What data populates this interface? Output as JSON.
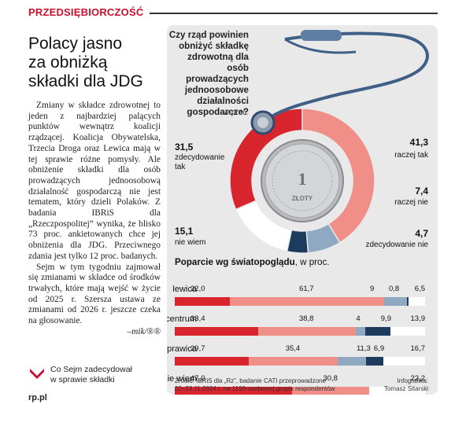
{
  "section": {
    "label": "PRZEDSIĘBIORCZOŚĆ"
  },
  "headline": [
    "Polacy jasno",
    "za obniżką",
    "składki dla JDG"
  ],
  "body": {
    "p1": "Zmiany w składce zdrowotnej to jeden z najbardziej palących punktów wewnątrz koalicji rządzącej. Koalicja Obywatelska, Trzecia Droga oraz Lewica mają w tej sprawie różne pomysły. Ale obniżenie składki dla osób prowadzących jednoosobową działalność gospodarczą nie jest tematem, który dzieli Polaków. Z badania IBRiS dla „Rzeczpospolitej” wynika, że blisko 73 proc. ankietowanych chce jej obniżenia dla JDG. Przeciwnego zdania jest tylko 12 proc. badanych.",
    "p2": "Sejm w tym tygodniu zajmował się zmianami w składce od środków trwałych, które mają wejść w życie od 2025 r. Szersza ustawa ze zmianami od 2026 r. jeszcze czeka na głosowanie.",
    "signature": "–mik/®®"
  },
  "related": {
    "line1": "Co Sejm zadecydował",
    "line2": "w sprawie składki",
    "icon": "chevron-down-icon"
  },
  "footer": {
    "site": "rp.pl"
  },
  "infographic": {
    "question": [
      "Czy rząd powinien",
      "obniżyć składkę",
      "zdrowotną dla osób",
      "prowadzących",
      "jednoosobowe",
      "działalności",
      "gospodarcze?"
    ],
    "unit": "w proc.",
    "donut_labels": {
      "zt_val": "31,5",
      "zt_l1": "zdecydowanie",
      "zt_l2": "tak",
      "rt_val": "41,3",
      "rt_l1": "raczej tak",
      "rn_val": "7,4",
      "rn_l1": "raczej nie",
      "zn_val": "4,7",
      "zn_l1": "zdecydowanie nie",
      "nw_val": "15,1",
      "nw_l1": "nie wiem"
    },
    "coin": {
      "digit": "1",
      "text": "ZŁOTY"
    },
    "subhead_bold": "Poparcie wg światopoglądu",
    "subhead_rest": ", w proc.",
    "rows": [
      {
        "label": "lewica",
        "n": [
          "22,0",
          "61,7",
          "9",
          "0,8",
          "6,5"
        ]
      },
      {
        "label": "centrum",
        "n": [
          "33,4",
          "38,8",
          "4",
          "9,9",
          "13,9"
        ]
      },
      {
        "label": "prawica",
        "n": [
          "29,7",
          "35,4",
          "11,3",
          "6,9",
          "16,7"
        ]
      },
      {
        "label": "nie wiem",
        "n": [
          "47,0",
          "30,8",
          "",
          "",
          "22,2"
        ]
      }
    ],
    "source_l1": "Źródło: IBRiS dla „Rz”, badanie CATI przeprowadzone",
    "source_l2": "22–23.11.2024 r. na 1100-osobowej grupie respondentów",
    "credit_l1": "Infografika:",
    "credit_l2": "Tomasz Sitarski",
    "colors": {
      "zdecydowanie_tak": "#d8242c",
      "raczej_tak": "#ef8f88",
      "raczej_nie": "#8fa9c2",
      "zdecydowanie_nie": "#1d3b5c",
      "nie_wiem": "#ffffff",
      "accent": "#c8102e"
    }
  },
  "chart_data": [
    {
      "type": "pie",
      "title": "Czy rząd powinien obniżyć składkę zdrowotną dla osób prowadzących jednoosobowe działalności gospodarcze?",
      "unit": "w proc.",
      "categories": [
        "zdecydowanie tak",
        "raczej tak",
        "raczej nie",
        "zdecydowanie nie",
        "nie wiem"
      ],
      "values": [
        31.5,
        41.3,
        7.4,
        4.7,
        15.1
      ]
    },
    {
      "type": "bar",
      "stacked": true,
      "orientation": "horizontal",
      "title": "Poparcie wg światopoglądu",
      "unit": "w proc.",
      "categories": [
        "lewica",
        "centrum",
        "prawica",
        "nie wiem"
      ],
      "series": [
        {
          "values": [
            22.0,
            33.4,
            29.7,
            47.0
          ]
        },
        {
          "values": [
            61.7,
            38.8,
            35.4,
            30.8
          ]
        },
        {
          "values": [
            9,
            4,
            11.3,
            0
          ]
        },
        {
          "values": [
            0.8,
            9.9,
            6.9,
            0
          ]
        },
        {
          "values": [
            6.5,
            13.9,
            16.7,
            22.2
          ]
        }
      ]
    }
  ]
}
